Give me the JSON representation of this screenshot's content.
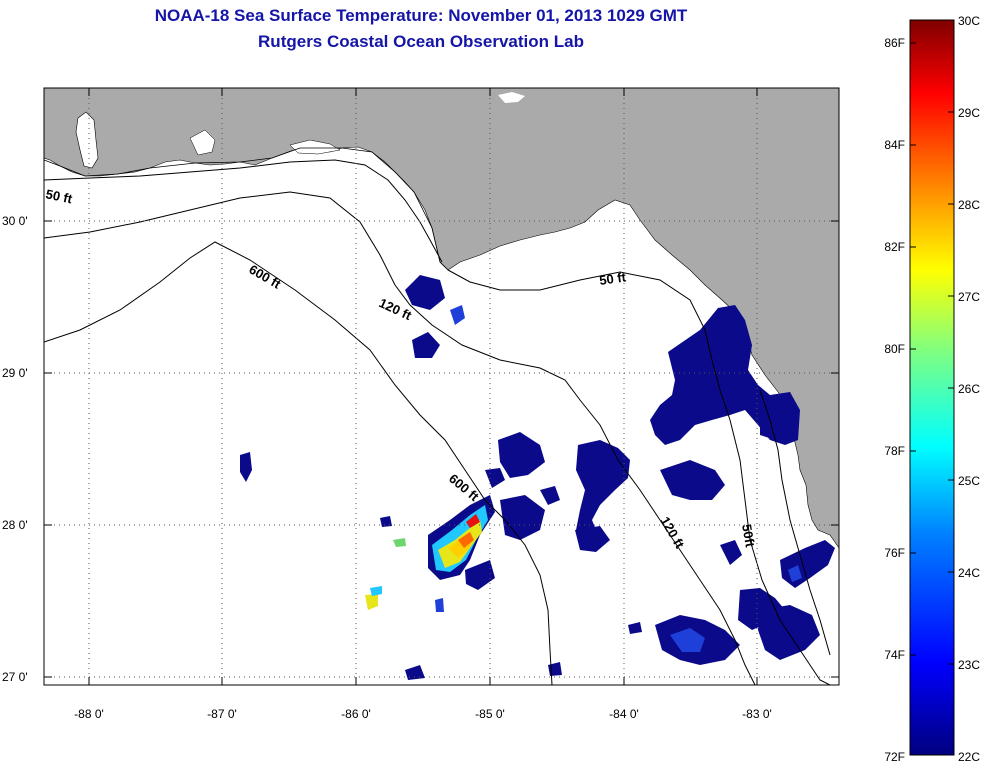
{
  "title_line1": "NOAA-18 Sea Surface Temperature:  November 01, 2013 1029 GMT",
  "title_line2": "Rutgers Coastal Ocean Observation Lab",
  "lat_ticks": [
    "30 0'",
    "29 0'",
    "28 0'",
    "27 0'"
  ],
  "lon_ticks": [
    "-88 0'",
    "-87 0'",
    "-86 0'",
    "-85 0'",
    "-84 0'",
    "-83 0'"
  ],
  "contours": {
    "c50_west": "50 ft",
    "c600_a": "600 ft",
    "c120_a": "120 ft",
    "c50_east": "50 ft",
    "c600_b": "600 ft",
    "c120_b": "120 ft",
    "c50_b": "50ft"
  },
  "colorbar": {
    "fahrenheit": [
      "86F",
      "84F",
      "82F",
      "80F",
      "78F",
      "76F",
      "74F",
      "72F"
    ],
    "celsius": [
      "30C",
      "29C",
      "28C",
      "27C",
      "26C",
      "25C",
      "24C",
      "23C",
      "22C"
    ],
    "stops": [
      "#00007f",
      "#0000ff",
      "#0080ff",
      "#00ffff",
      "#80ff80",
      "#ffff00",
      "#ff8000",
      "#ff0000",
      "#7f0000"
    ]
  },
  "colors": {
    "land": "#aaaaaa",
    "ocean": "#ffffff",
    "cold_sst": "#0a0a8a",
    "title": "#1515a8"
  }
}
